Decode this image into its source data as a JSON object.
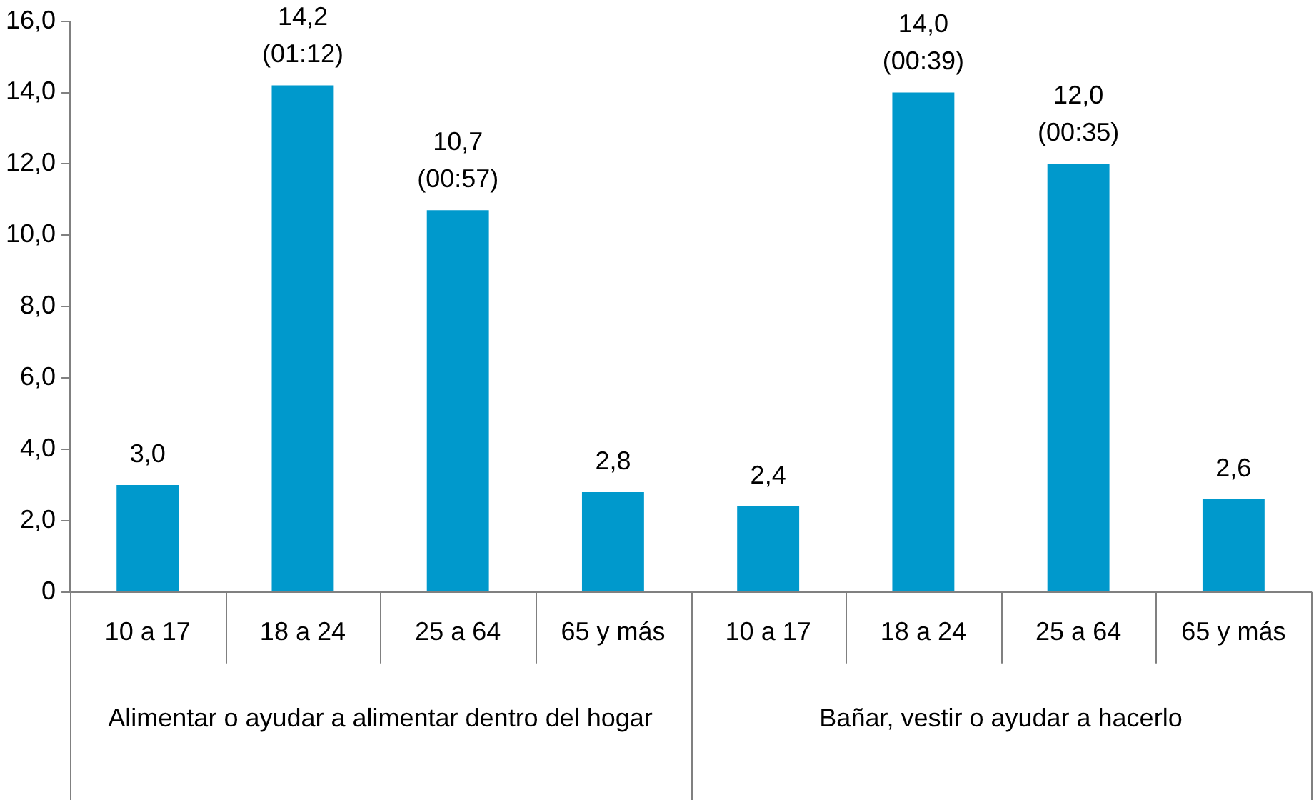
{
  "chart_data": {
    "type": "bar",
    "categories": [
      "10 a 17",
      "18 a 24",
      "25 a 64",
      "65 y más",
      "10 a 17",
      "18 a 24",
      "25 a 64",
      "65 y más"
    ],
    "values": [
      3.0,
      14.2,
      10.7,
      2.8,
      2.4,
      14.0,
      12.0,
      2.6
    ],
    "color": "#0099cc",
    "value_labels": [
      "3,0",
      "14,2\n(01:12)",
      "10,7\n(00:57)",
      "2,8",
      "2,4",
      "14,0\n(00:39)",
      "12,0\n(00:35)",
      "2,6"
    ],
    "annotations": [
      "Alimentar o ayudar a alimentar dentro del hogar",
      "Bañar, vestir o ayudar a hacerlo"
    ],
    "ylim": [
      0,
      16
    ],
    "yticks": [
      0,
      {
        "value": 2,
        "label": "2,0"
      },
      {
        "value": 4,
        "label": "4,0"
      },
      {
        "value": 6,
        "label": "6,0"
      },
      {
        "value": 8,
        "label": "8,0"
      },
      {
        "value": 10,
        "label": "10,0"
      },
      {
        "value": 12,
        "label": "12,0"
      },
      {
        "value": 14,
        "label": "14,0"
      },
      {
        "value": 16,
        "label": "16,0"
      }
    ],
    "grid": false,
    "legend": false
  }
}
